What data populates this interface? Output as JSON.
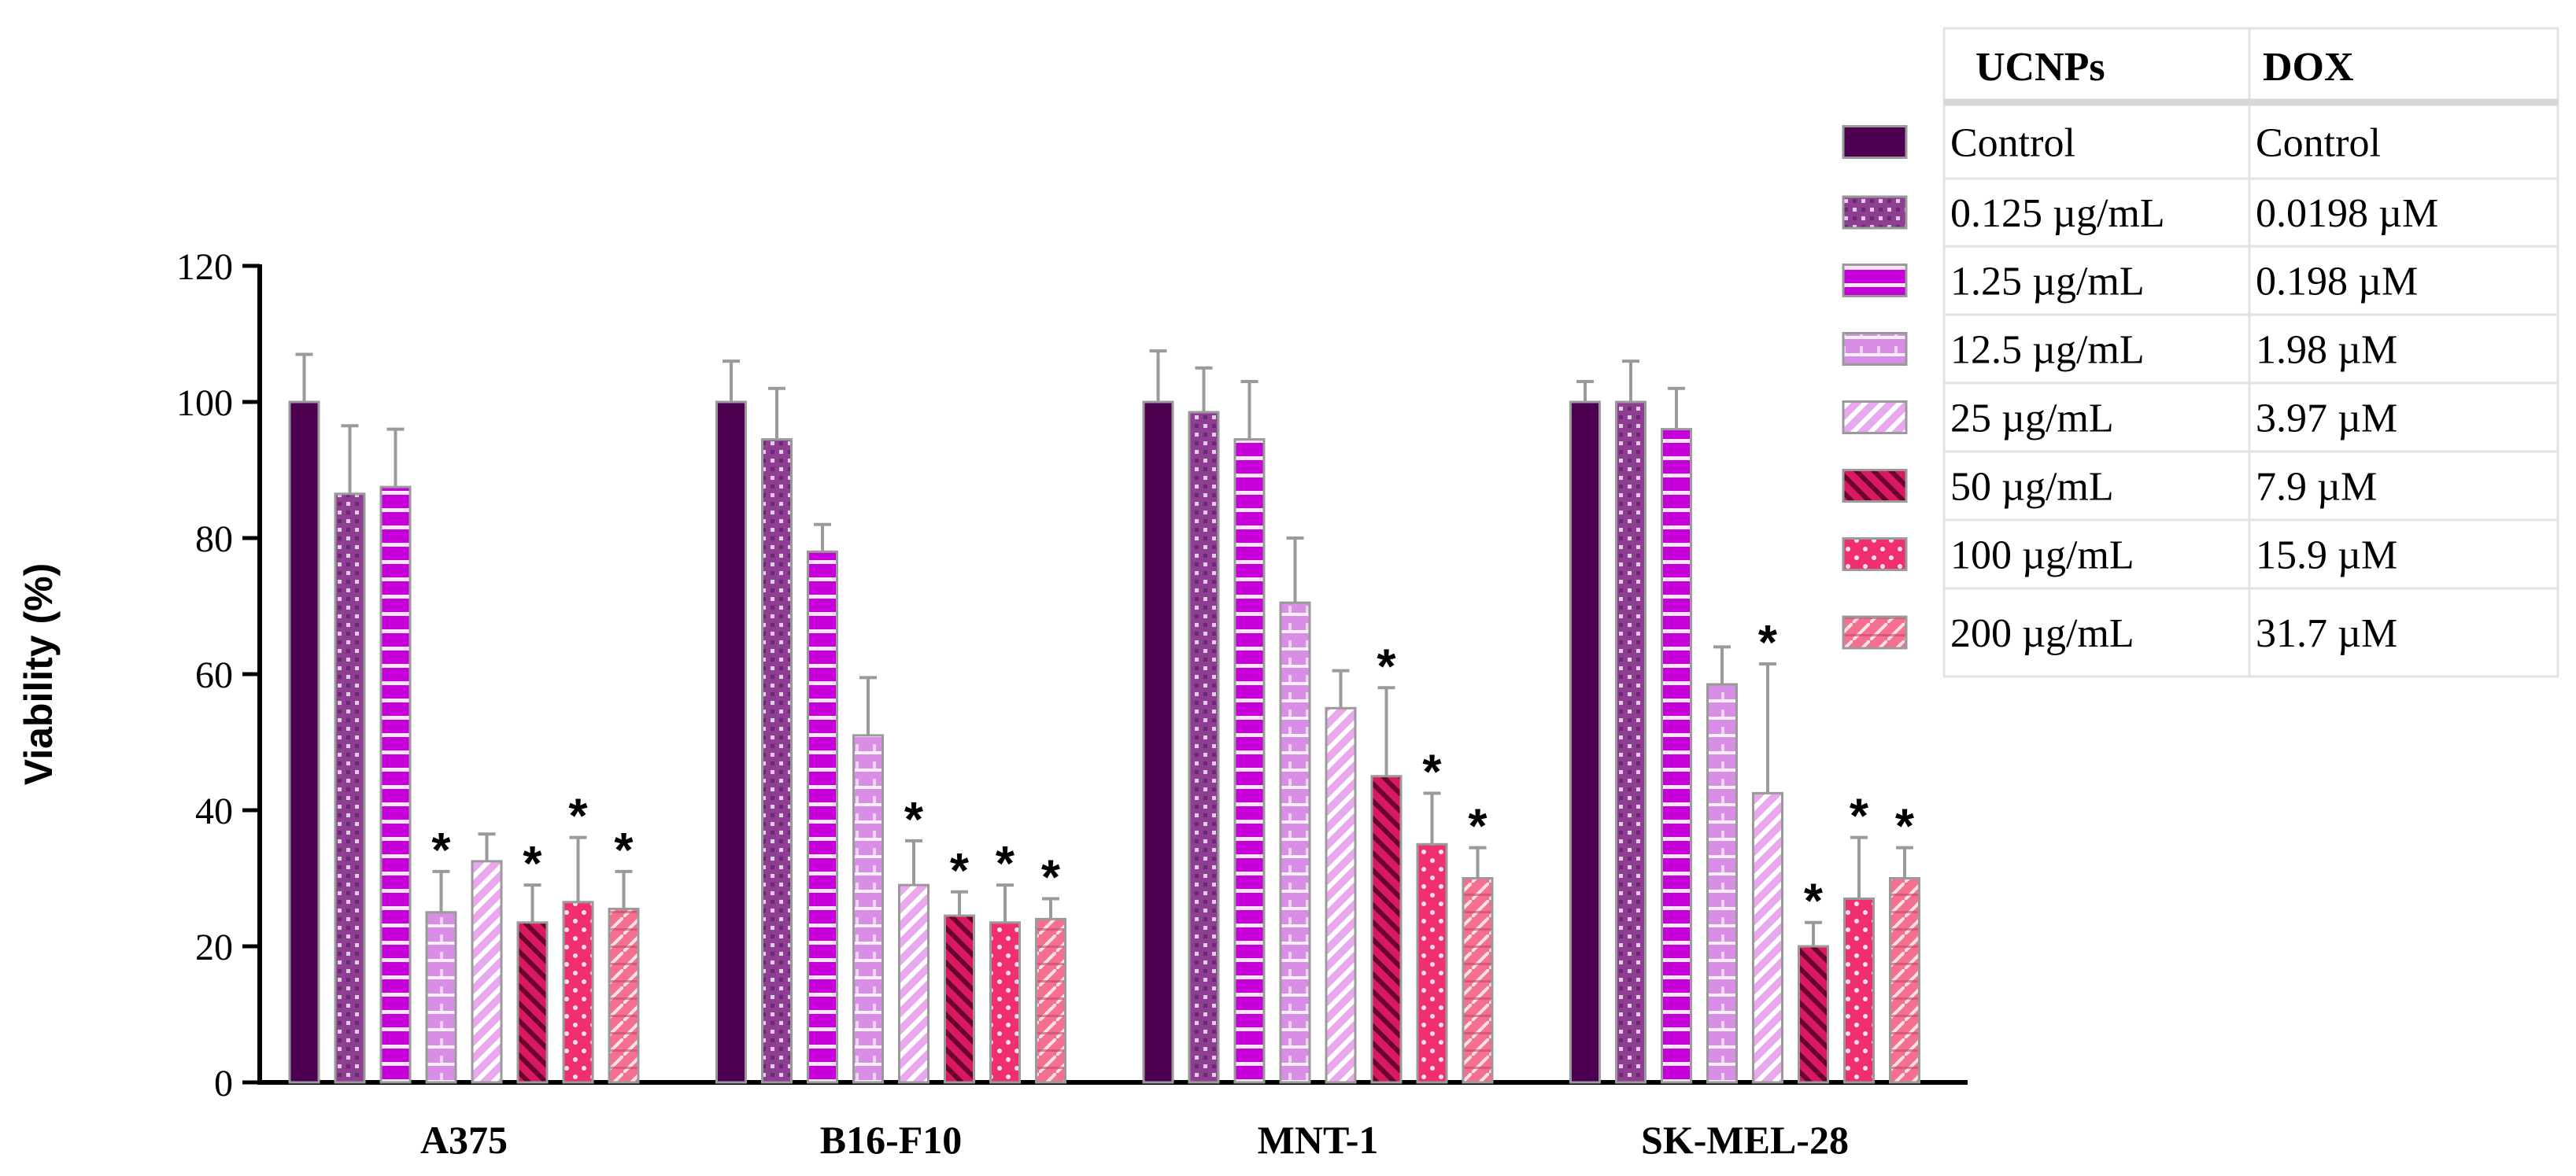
{
  "chart_data": {
    "type": "bar",
    "title": "",
    "xlabel": "",
    "ylabel": "Viability (%)",
    "ylim": [
      0,
      120
    ],
    "yticks": [
      0,
      20,
      40,
      60,
      80,
      100,
      120
    ],
    "categories": [
      "A375",
      "B16-F10",
      "MNT-1",
      "SK-MEL-28"
    ],
    "significance_marker": "*",
    "legend_headers": {
      "ucnps": "UCNPs",
      "dox": "DOX"
    },
    "series": [
      {
        "name": "Control",
        "dox": "Control",
        "color": "#4d0052",
        "pattern": "solid",
        "values": [
          100,
          100,
          100,
          100
        ],
        "errors": [
          7,
          6,
          7.5,
          3
        ],
        "significant": [
          false,
          false,
          false,
          false
        ]
      },
      {
        "name": "0.125 µg/mL",
        "dox": "0.0198 µM",
        "color": "#8e3f93",
        "pattern": "checker",
        "values": [
          86.5,
          94.5,
          98.5,
          100
        ],
        "errors": [
          10,
          7.5,
          6.5,
          6
        ],
        "significant": [
          false,
          false,
          false,
          false
        ]
      },
      {
        "name": "1.25 µg/mL",
        "dox": "0.198 µM",
        "color": "#c700d9",
        "pattern": "hstripe-white",
        "values": [
          87.5,
          78,
          94.5,
          96
        ],
        "errors": [
          8.5,
          4,
          8.5,
          6
        ],
        "significant": [
          false,
          false,
          false,
          false
        ]
      },
      {
        "name": "12.5 µg/mL",
        "dox": "1.98 µM",
        "color": "#d98ee5",
        "pattern": "brick",
        "values": [
          25,
          51,
          70.5,
          58.5
        ],
        "errors": [
          6,
          8.5,
          9.5,
          5.5
        ],
        "significant": [
          true,
          false,
          false,
          false
        ]
      },
      {
        "name": "25 µg/mL",
        "dox": "3.97 µM",
        "color": "#e9a8ee",
        "pattern": "diag-up",
        "values": [
          32.5,
          29,
          55,
          42.5
        ],
        "errors": [
          4,
          6.5,
          5.5,
          19
        ],
        "significant": [
          false,
          true,
          false,
          true
        ]
      },
      {
        "name": "50 µg/mL",
        "dox": "7.9 µM",
        "color": "#d8195f",
        "pattern": "diag-down",
        "values": [
          23.5,
          24.5,
          45,
          20
        ],
        "errors": [
          5.5,
          3.5,
          13,
          3.5
        ],
        "significant": [
          true,
          true,
          true,
          true
        ]
      },
      {
        "name": "100 µg/mL",
        "dox": "15.9 µM",
        "color": "#f0306e",
        "pattern": "dots",
        "values": [
          26.5,
          23.5,
          35,
          27
        ],
        "errors": [
          9.5,
          5.5,
          7.5,
          9
        ],
        "significant": [
          true,
          true,
          true,
          true
        ]
      },
      {
        "name": "200 µg/mL",
        "dox": "31.7 µM",
        "color": "#f5708e",
        "pattern": "brick-diag",
        "values": [
          25.5,
          24,
          30,
          30
        ],
        "errors": [
          5.5,
          3,
          4.5,
          4.5
        ],
        "significant": [
          true,
          true,
          true,
          true
        ]
      }
    ]
  }
}
